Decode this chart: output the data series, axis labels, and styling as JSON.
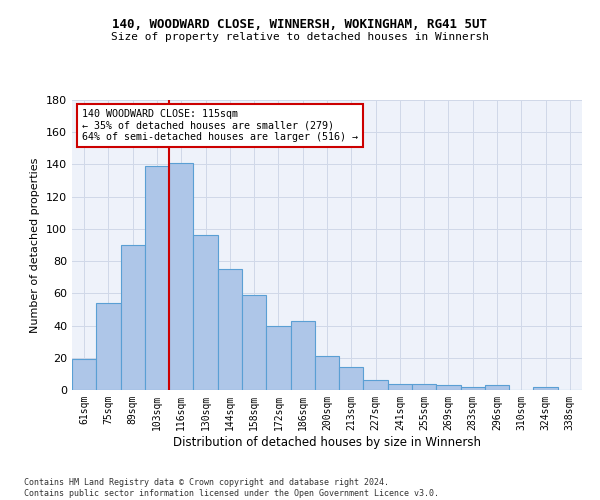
{
  "title1": "140, WOODWARD CLOSE, WINNERSH, WOKINGHAM, RG41 5UT",
  "title2": "Size of property relative to detached houses in Winnersh",
  "xlabel": "Distribution of detached houses by size in Winnersh",
  "ylabel": "Number of detached properties",
  "bar_labels": [
    "61sqm",
    "75sqm",
    "89sqm",
    "103sqm",
    "116sqm",
    "130sqm",
    "144sqm",
    "158sqm",
    "172sqm",
    "186sqm",
    "200sqm",
    "213sqm",
    "227sqm",
    "241sqm",
    "255sqm",
    "269sqm",
    "283sqm",
    "296sqm",
    "310sqm",
    "324sqm",
    "338sqm"
  ],
  "bar_values": [
    19,
    54,
    90,
    139,
    141,
    96,
    75,
    59,
    40,
    43,
    21,
    14,
    6,
    4,
    4,
    3,
    2,
    3,
    0,
    2,
    0
  ],
  "bar_color": "#aec6e8",
  "bar_edge_color": "#5a9fd4",
  "grid_color": "#d0d8e8",
  "bg_color": "#eef2fa",
  "annotation_text": "140 WOODWARD CLOSE: 115sqm\n← 35% of detached houses are smaller (279)\n64% of semi-detached houses are larger (516) →",
  "annotation_box_color": "#ffffff",
  "annotation_border_color": "#cc0000",
  "line_color": "#cc0000",
  "ylim": [
    0,
    180
  ],
  "yticks": [
    0,
    20,
    40,
    60,
    80,
    100,
    120,
    140,
    160,
    180
  ],
  "footer": "Contains HM Land Registry data © Crown copyright and database right 2024.\nContains public sector information licensed under the Open Government Licence v3.0."
}
